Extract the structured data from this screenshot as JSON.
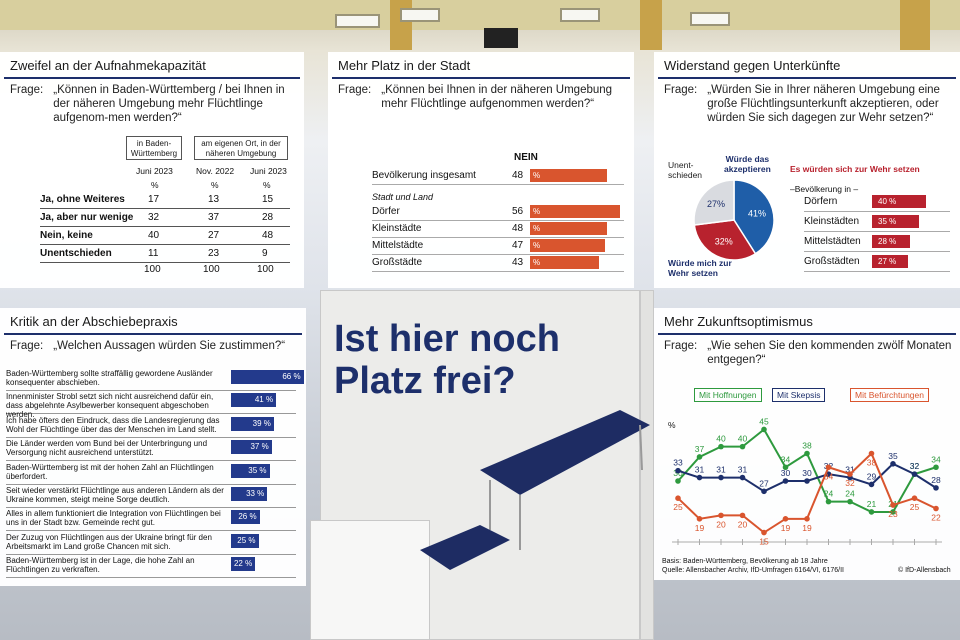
{
  "headline": {
    "line1": "Ist hier noch",
    "line2": "Platz frei?"
  },
  "p1": {
    "title": "Zweifel an der Aufnahmekapazität",
    "q_label": "Frage:",
    "question": "„Können in Baden-Württemberg / bei Ihnen in der näheren Umgebung mehr Flüchtlinge aufgenom-men werden?“",
    "col1_head": "in Baden-Württemberg",
    "col2_head": "am eigenen Ort, in der näheren Umgebung",
    "dates": [
      "Juni 2023",
      "Nov. 2022",
      "Juni 2023"
    ],
    "pct": "%",
    "rows": [
      {
        "label": "Ja, ohne Weiteres",
        "v": [
          "17",
          "13",
          "15"
        ]
      },
      {
        "label": "Ja, aber nur wenige",
        "v": [
          "32",
          "37",
          "28"
        ]
      },
      {
        "label": "Nein, keine",
        "v": [
          "40",
          "27",
          "48"
        ]
      },
      {
        "label": "Unentschieden",
        "v": [
          "11",
          "23",
          "9"
        ]
      }
    ],
    "totals": [
      "100",
      "100",
      "100"
    ]
  },
  "p2": {
    "title": "Mehr Platz in der Stadt",
    "q_label": "Frage:",
    "question": "„Können bei Ihnen in der näheren Umgebung mehr Flüchtlinge aufgenommen werden?“",
    "nein": "NEIN",
    "pct": "%",
    "total_label": "Bevölkerung insgesamt",
    "total_value": 48,
    "group_label": "Stadt und Land",
    "rows": [
      {
        "label": "Dörfer",
        "value": 56
      },
      {
        "label": "Kleinstädte",
        "value": 48
      },
      {
        "label": "Mittelstädte",
        "value": 47
      },
      {
        "label": "Großstädte",
        "value": 43
      }
    ]
  },
  "p3": {
    "title": "Widerstand gegen Unterkünfte",
    "q_label": "Frage:",
    "question": "„Würden Sie in Ihrer näheren Umgebung eine große Flüchtlingsunterkunft  akzeptieren, oder würden Sie sich dagegen zur Wehr setzen?“",
    "pie": [
      {
        "label": "Würde das akzeptieren",
        "value": 41,
        "text": "41%",
        "color": "#1f5ea8"
      },
      {
        "label": "Würde mich zur Wehr setzen",
        "value": 32,
        "text": "32%",
        "color": "#b8222e"
      },
      {
        "label": "Unent-schieden",
        "value": 27,
        "text": "27%",
        "color": "#d9dbe0"
      }
    ],
    "lab_accept_1": "Würde das",
    "lab_accept_2": "akzeptieren",
    "lab_wehr_1": "Würde mich zur",
    "lab_wehr_2": "Wehr setzen",
    "lab_unent_1": "Unent-",
    "lab_unent_2": "schieden",
    "bars_title": "Es würden sich zur Wehr setzen",
    "bars_sub": "–Bevölkerung in –",
    "pct": "%",
    "bars": [
      {
        "label": "Dörfern",
        "value": 40
      },
      {
        "label": "Kleinstädten",
        "value": 35
      },
      {
        "label": "Mittelstädten",
        "value": 28
      },
      {
        "label": "Großstädten",
        "value": 27
      }
    ]
  },
  "p4": {
    "title": "Kritik an der Abschiebepraxis",
    "q_label": "Frage:",
    "question": "„Welchen Aussagen würden Sie zustimmen?“",
    "pct": "%",
    "rows": [
      {
        "text": "Baden-Württemberg sollte straffällig gewordene Ausländer konsequenter abschieben.",
        "value": 66
      },
      {
        "text": "Innenminister Strobl setzt sich nicht ausreichend dafür ein, dass abgelehnte Asylbewerber konsequent abgeschoben werden.",
        "value": 41
      },
      {
        "text": "Ich habe öfters den Eindruck, dass die Landesregierung das Wohl der Flüchtlinge über das der Menschen im Land stellt.",
        "value": 39
      },
      {
        "text": "Die Länder werden vom Bund bei der Unterbringung und Versorgung nicht ausreichend unterstützt.",
        "value": 37
      },
      {
        "text": "Baden-Württemberg ist mit der hohen Zahl an Flüchtlingen überfordert.",
        "value": 35
      },
      {
        "text": "Seit wieder verstärkt Flüchtlinge aus anderen Ländern als der Ukraine kommen, steigt meine Sorge deutlich.",
        "value": 33
      },
      {
        "text": "Alles in allem funktioniert die Integration von Flüchtlingen bei uns in der Stadt bzw. Gemeinde recht gut.",
        "value": 26
      },
      {
        "text": "Der Zuzug von Flüchtlingen aus der Ukraine bringt für den Arbeitsmarkt im Land große Chancen mit sich.",
        "value": 25
      },
      {
        "text": "Baden-Württemberg ist in der Lage, die hohe Zahl an Flüchtlingen zu verkraften.",
        "value": 22
      }
    ]
  },
  "p5": {
    "title": "Mehr Zukunftsoptimismus",
    "q_label": "Frage:",
    "question": "„Wie sehen Sie den kommenden zwölf Monaten entgegen?“",
    "ylabel": "%",
    "footer1": "Basis: Baden-Württemberg, Bevölkerung ab 18 Jahre",
    "footer2": "Quelle: Allensbacher Archiv, IfD-Umfragen 6164/VI, 6176/II",
    "credit": "© IfD-Allensbach"
  },
  "chart_data": [
    {
      "type": "table",
      "title": "Zweifel an der Aufnahmekapazität",
      "columns": [
        "in Baden-Württemberg Juni 2023",
        "am eigenen Ort Nov. 2022",
        "am eigenen Ort Juni 2023"
      ],
      "rows": {
        "Ja, ohne Weiteres": [
          17,
          13,
          15
        ],
        "Ja, aber nur wenige": [
          32,
          37,
          28
        ],
        "Nein, keine": [
          40,
          27,
          48
        ],
        "Unentschieden": [
          11,
          23,
          9
        ]
      }
    },
    {
      "type": "bar",
      "title": "Mehr Platz in der Stadt",
      "categories": [
        "Bevölkerung insgesamt",
        "Dörfer",
        "Kleinstädte",
        "Mittelstädte",
        "Großstädte"
      ],
      "values": [
        48,
        56,
        48,
        47,
        43
      ],
      "ylabel": "NEIN"
    },
    {
      "type": "pie",
      "title": "Widerstand gegen Unterkünfte",
      "categories": [
        "Würde das akzeptieren",
        "Würde mich zur Wehr setzen",
        "Unentschieden"
      ],
      "values": [
        41,
        32,
        27
      ]
    },
    {
      "type": "bar",
      "title": "Es würden sich zur Wehr setzen",
      "categories": [
        "Dörfern",
        "Kleinstädten",
        "Mittelstädten",
        "Großstädten"
      ],
      "values": [
        40,
        35,
        28,
        27
      ]
    },
    {
      "type": "bar",
      "title": "Kritik an der Abschiebepraxis",
      "values": [
        66,
        41,
        39,
        37,
        35,
        33,
        26,
        25,
        22
      ]
    },
    {
      "type": "line",
      "title": "Mehr Zukunftsoptimismus",
      "ylabel": "%",
      "series": [
        {
          "name": "Mit Hoffnungen",
          "color": "#2e9a3e",
          "values": [
            30,
            37,
            40,
            40,
            45,
            34,
            38,
            24,
            24,
            21,
            21,
            32,
            34
          ]
        },
        {
          "name": "Mit Skepsis",
          "color": "#1d2f6b",
          "values": [
            33,
            31,
            31,
            31,
            27,
            30,
            30,
            32,
            31,
            29,
            35,
            32,
            28
          ]
        },
        {
          "name": "Mit Befürchtungen",
          "color": "#d9552e",
          "values": [
            25,
            19,
            20,
            20,
            15,
            19,
            19,
            34,
            32,
            38,
            23,
            25,
            22
          ]
        }
      ]
    }
  ]
}
